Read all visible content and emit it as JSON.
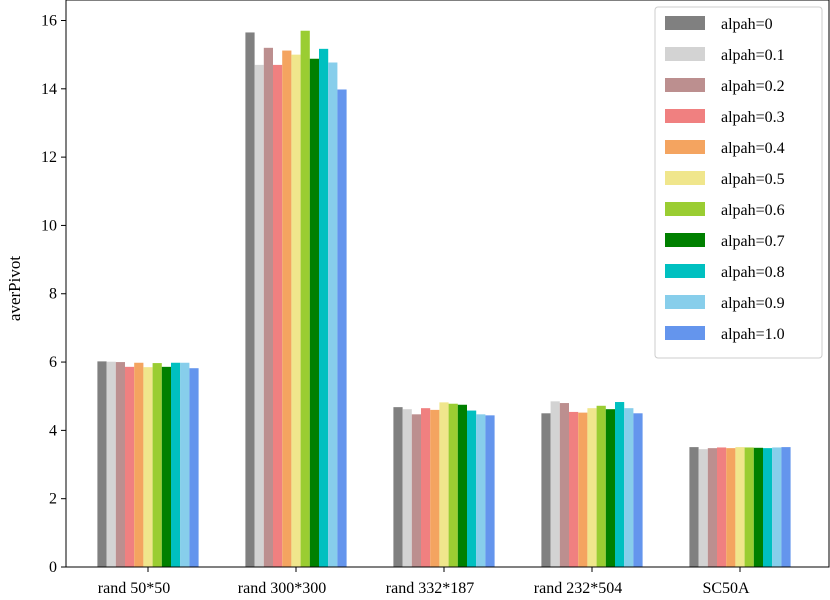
{
  "chart_data": {
    "type": "bar",
    "title": "",
    "xlabel": "",
    "ylabel": "averPivot",
    "ylim": [
      0,
      16.6
    ],
    "yticks": [
      0,
      2,
      4,
      6,
      8,
      10,
      12,
      14,
      16
    ],
    "grid": false,
    "legend_position": "top-right",
    "categories": [
      "rand 50*50",
      "rand 300*300",
      "rand 332*187",
      "rand 232*504",
      "SC50A"
    ],
    "series": [
      {
        "name": "alpah=0",
        "color": "#808080",
        "values": [
          6.02,
          15.65,
          4.68,
          4.5,
          3.51
        ]
      },
      {
        "name": "alpah=0.1",
        "color": "#d3d3d3",
        "values": [
          6.01,
          14.7,
          4.62,
          4.85,
          3.45
        ]
      },
      {
        "name": "alpah=0.2",
        "color": "#bc8f8f",
        "values": [
          6.0,
          15.2,
          4.47,
          4.8,
          3.48
        ]
      },
      {
        "name": "alpah=0.3",
        "color": "#f08080",
        "values": [
          5.86,
          14.7,
          4.65,
          4.54,
          3.5
        ]
      },
      {
        "name": "alpah=0.4",
        "color": "#f4a460",
        "values": [
          5.98,
          15.12,
          4.6,
          4.52,
          3.48
        ]
      },
      {
        "name": "alpah=0.5",
        "color": "#f0e68c",
        "values": [
          5.85,
          15.0,
          4.82,
          4.65,
          3.51
        ]
      },
      {
        "name": "alpah=0.6",
        "color": "#9acd32",
        "values": [
          5.97,
          15.7,
          4.78,
          4.72,
          3.5
        ]
      },
      {
        "name": "alpah=0.7",
        "color": "#008000",
        "values": [
          5.86,
          14.88,
          4.75,
          4.62,
          3.49
        ]
      },
      {
        "name": "alpah=0.8",
        "color": "#00c0c0",
        "values": [
          5.98,
          15.17,
          4.58,
          4.83,
          3.48
        ]
      },
      {
        "name": "alpah=0.9",
        "color": "#87ceeb",
        "values": [
          5.98,
          14.77,
          4.47,
          4.65,
          3.5
        ]
      },
      {
        "name": "alpah=1.0",
        "color": "#6495ed",
        "values": [
          5.82,
          13.98,
          4.44,
          4.5,
          3.51
        ]
      }
    ]
  }
}
